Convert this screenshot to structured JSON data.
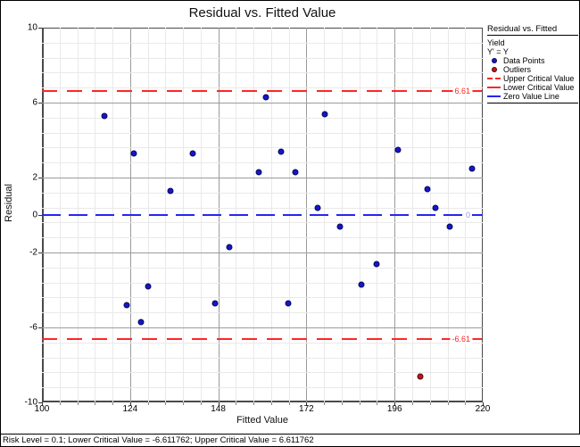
{
  "window": {
    "status_bar": "Risk Level = 0.1; Lower Critical Value = -6.611762; Upper Critical Value = 6.611762"
  },
  "chart_data": {
    "type": "scatter",
    "title": "Residual vs. Fitted Value",
    "xlabel": "Fitted Value",
    "ylabel": "Residual",
    "xlim": [
      100,
      220
    ],
    "ylim": [
      -10,
      10
    ],
    "x_tick_values": [
      100,
      124,
      148,
      172,
      196,
      220
    ],
    "x_tick_labels": [
      "100",
      "124",
      "148",
      "172",
      "196",
      "220"
    ],
    "y_tick_values": [
      10,
      6,
      2,
      0,
      -2,
      -6,
      -10
    ],
    "y_tick_labels": [
      "10",
      "6",
      "2",
      "0",
      "-2",
      "-6",
      "-10"
    ],
    "x_minor_step": 4.8,
    "y_minor_step": 0.8,
    "y_major_values": [
      6,
      2,
      -2,
      -6
    ],
    "grid": true,
    "legend_position": "top-right-outside",
    "series": [
      {
        "name": "Data Points",
        "color": "#1616cb",
        "points": [
          [
            117,
            5.3
          ],
          [
            123,
            -4.8
          ],
          [
            125,
            3.3
          ],
          [
            127,
            -5.7
          ],
          [
            129,
            -3.8
          ],
          [
            135,
            1.3
          ],
          [
            141,
            3.3
          ],
          [
            147,
            -4.7
          ],
          [
            151,
            -1.7
          ],
          [
            159,
            2.3
          ],
          [
            161,
            6.3
          ],
          [
            165,
            3.4
          ],
          [
            167,
            -4.7
          ],
          [
            169,
            2.3
          ],
          [
            175,
            0.4
          ],
          [
            177,
            5.4
          ],
          [
            181,
            -0.6
          ],
          [
            187,
            -3.7
          ],
          [
            191,
            -2.6
          ],
          [
            197,
            3.5
          ],
          [
            205,
            1.4
          ],
          [
            207,
            0.4
          ],
          [
            211,
            -0.6
          ],
          [
            217,
            2.5
          ]
        ]
      },
      {
        "name": "Outliers",
        "color": "#cc1111",
        "points": [
          [
            203,
            -8.6
          ]
        ]
      }
    ],
    "reference_lines": [
      {
        "name": "Upper Critical Value",
        "value": 6.611762,
        "label": "6.61",
        "color": "#ff2626",
        "label_color": "#ff2626",
        "style": "dashed",
        "dash": [
          17,
          11
        ]
      },
      {
        "name": "Lower Critical Value",
        "value": -6.611762,
        "label": "-6.61",
        "color": "#ff2626",
        "label_color": "#ff2626",
        "style": "dashed",
        "dash": [
          17,
          11
        ]
      },
      {
        "name": "Zero Value Line",
        "value": 0,
        "label": "0",
        "color": "#2626f0",
        "label_color": "#9393f2",
        "style": "dashed",
        "dash": [
          21,
          9
        ]
      }
    ]
  },
  "legend": {
    "title": "Residual vs. Fitted",
    "lines": [
      "Yield",
      "Y' = Y"
    ],
    "items": [
      {
        "label": "Data Points",
        "marker": "dot",
        "color": "#1616cb"
      },
      {
        "label": "Outliers",
        "marker": "dot",
        "color": "#cc1111"
      },
      {
        "label": "Upper Critical Value",
        "marker": "dashed-line",
        "color": "#ff2626"
      },
      {
        "label": "Lower Critical Value",
        "marker": "line",
        "color": "#ff2626"
      },
      {
        "label": "Zero Value Line",
        "marker": "line",
        "color": "#2626f0"
      }
    ]
  }
}
